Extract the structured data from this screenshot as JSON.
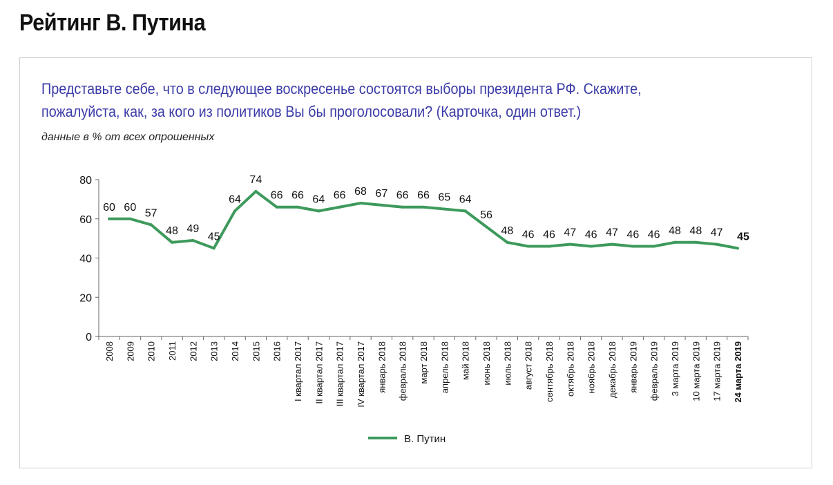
{
  "title": "Рейтинг В. Путина",
  "question_line1": "Представьте себе, что в следующее воскресенье состоятся выборы президента РФ. Скажите,",
  "question_line2": "пожалуйста, как, за кого из политиков Вы бы проголосовали?  (Карточка, один ответ.)",
  "subtitle": "данные в % от всех опрошенных",
  "chart_data": {
    "type": "line",
    "title": "",
    "xlabel": "",
    "ylabel": "",
    "ylim": [
      0,
      80
    ],
    "yticks": [
      0,
      20,
      40,
      60,
      80
    ],
    "grid": false,
    "legend_position": "bottom",
    "categories": [
      "2008",
      "2009",
      "2010",
      "2011",
      "2012",
      "2013",
      "2014",
      "2015",
      "2016",
      "I квартал 2017",
      "II квартал 2017",
      "III квартал 2017",
      "IV квартал 2017",
      "январь 2018",
      "февраль 2018",
      "март 2018",
      "апрель 2018",
      "май 2018",
      "июнь 2018",
      "июль 2018",
      "август 2018",
      "сентябрь 2018",
      "октябрь 2018",
      "ноябрь 2018",
      "декабрь 2018",
      "январь 2019",
      "февраль 2019",
      "3 марта 2019",
      "10 марта 2019",
      "17 марта 2019",
      "24 марта 2019"
    ],
    "series": [
      {
        "name": "В. Путин",
        "color": "#3d9a5c",
        "values": [
          60,
          60,
          57,
          48,
          49,
          45,
          64,
          74,
          66,
          66,
          64,
          66,
          68,
          67,
          66,
          66,
          65,
          64,
          56,
          48,
          46,
          46,
          47,
          46,
          47,
          46,
          46,
          48,
          48,
          47,
          45
        ]
      }
    ]
  }
}
